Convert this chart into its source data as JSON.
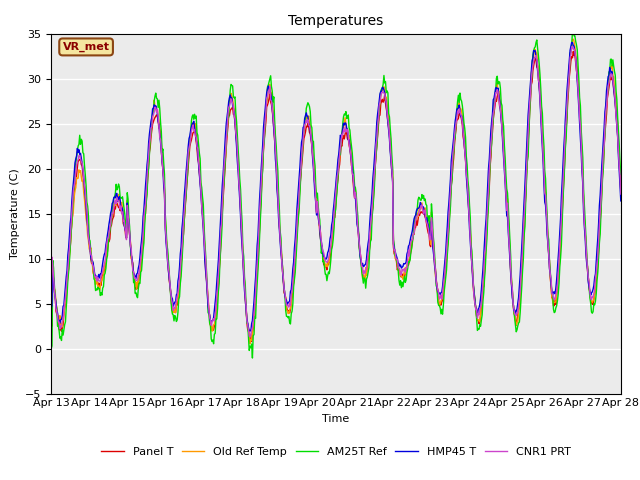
{
  "title": "Temperatures",
  "xlabel": "Time",
  "ylabel": "Temperature (C)",
  "ylim": [
    -5,
    35
  ],
  "x_tick_labels": [
    "Apr 13",
    "Apr 14",
    "Apr 15",
    "Apr 16",
    "Apr 17",
    "Apr 18",
    "Apr 19",
    "Apr 20",
    "Apr 21",
    "Apr 22",
    "Apr 23",
    "Apr 24",
    "Apr 25",
    "Apr 26",
    "Apr 27",
    "Apr 28"
  ],
  "annotation_text": "VR_met",
  "series_colors": [
    "#dd0000",
    "#ff9900",
    "#00dd00",
    "#0000dd",
    "#cc44cc"
  ],
  "series_names": [
    "Panel T",
    "Old Ref Temp",
    "AM25T Ref",
    "HMP45 T",
    "CNR1 PRT"
  ],
  "series_linewidths": [
    1.0,
    1.0,
    1.0,
    1.0,
    1.0
  ],
  "bg_color": "#ebebeb",
  "fig_bg": "#ffffff",
  "title_fontsize": 10,
  "label_fontsize": 8,
  "tick_fontsize": 8,
  "n_days": 15,
  "pts_per_day": 48,
  "day_mins_base": [
    2,
    7,
    7,
    4,
    2,
    1,
    4,
    9,
    8,
    8,
    5,
    3,
    3,
    5,
    5
  ],
  "day_maxs_base": [
    21,
    16,
    26,
    24,
    27,
    28,
    25,
    24,
    28,
    15,
    26,
    28,
    32,
    33,
    30
  ]
}
